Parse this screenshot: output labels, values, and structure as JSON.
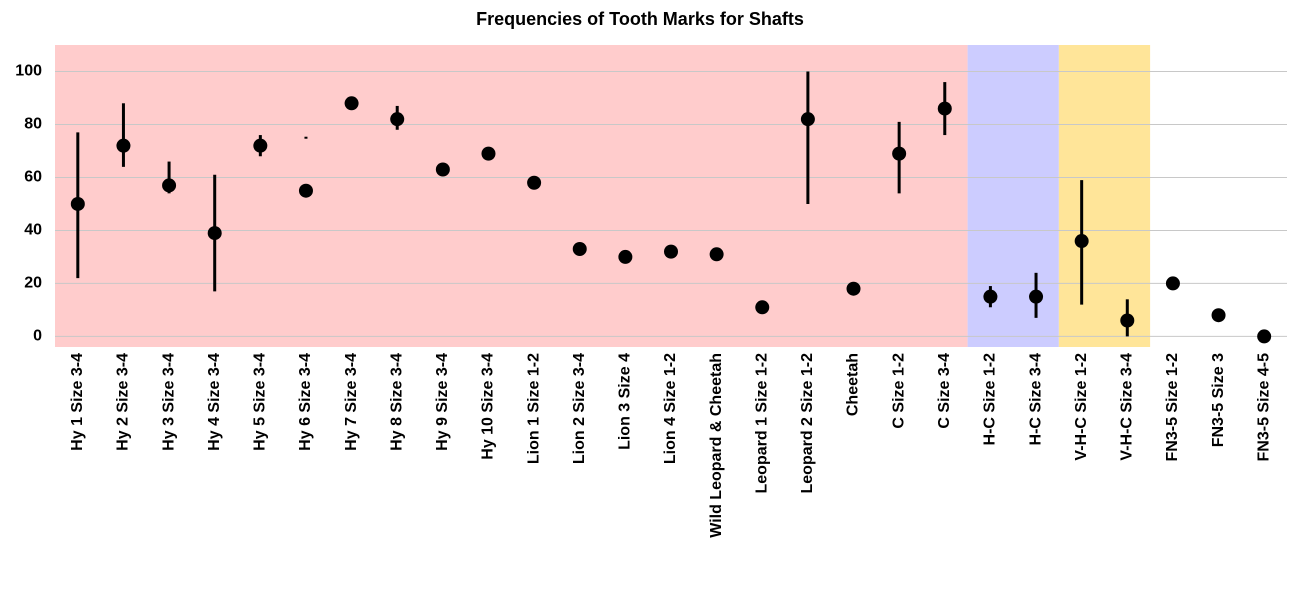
{
  "chart_data": {
    "type": "errorbar_dot",
    "title": "Frequencies of Tooth Marks for Shafts",
    "categories": [
      "Hy 1 Size 3-4",
      "Hy 2 Size 3-4",
      "Hy 3 Size 3-4",
      "Hy 4 Size 3-4",
      "Hy 5 Size 3-4",
      "Hy 6 Size 3-4",
      "Hy 7 Size 3-4",
      "Hy 8 Size 3-4",
      "Hy 9 Size 3-4",
      "Hy 10 Size 3-4",
      "Lion 1 Size 1-2",
      "Lion 2 Size 3-4",
      "Lion 3 Size 4",
      "Lion 4 Size 1-2",
      "Wild Leopard & Cheetah",
      "Leopard 1 Size 1-2",
      "Leopard 2 Size 1-2",
      "Cheetah",
      "C Size 1-2",
      "C Size 3-4",
      "H-C Size 1-2",
      "H-C Size 3-4",
      "V-H-C Size 1-2",
      "V-H-C Size 3-4",
      "FN3-5 Size 1-2",
      "FN3-5 Size 3",
      "FN3-5 Size 4-5"
    ],
    "values": [
      50,
      72,
      57,
      39,
      72,
      55,
      88,
      82,
      63,
      69,
      58,
      33,
      30,
      32,
      31,
      11,
      82,
      18,
      69,
      86,
      15,
      15,
      36,
      6,
      20,
      8,
      0
    ],
    "lower": [
      22,
      64,
      54,
      17,
      68,
      75,
      null,
      78,
      null,
      null,
      null,
      null,
      null,
      null,
      null,
      null,
      50,
      null,
      54,
      76,
      11,
      7,
      12,
      0,
      null,
      null,
      null
    ],
    "upper": [
      77,
      88,
      66,
      61,
      76,
      75,
      null,
      87,
      null,
      null,
      null,
      null,
      null,
      null,
      null,
      null,
      100,
      null,
      81,
      96,
      19,
      24,
      59,
      14,
      null,
      null,
      null
    ],
    "color": "#000000",
    "regions": [
      {
        "start": 0,
        "end": 19,
        "color": "#ffcccc"
      },
      {
        "start": 20,
        "end": 21,
        "color": "#ccccff"
      },
      {
        "start": 22,
        "end": 23,
        "color": "#ffe599"
      }
    ],
    "ylim": [
      -4,
      110
    ],
    "yticks": [
      0,
      20,
      40,
      60,
      80,
      100
    ],
    "grid": true
  }
}
